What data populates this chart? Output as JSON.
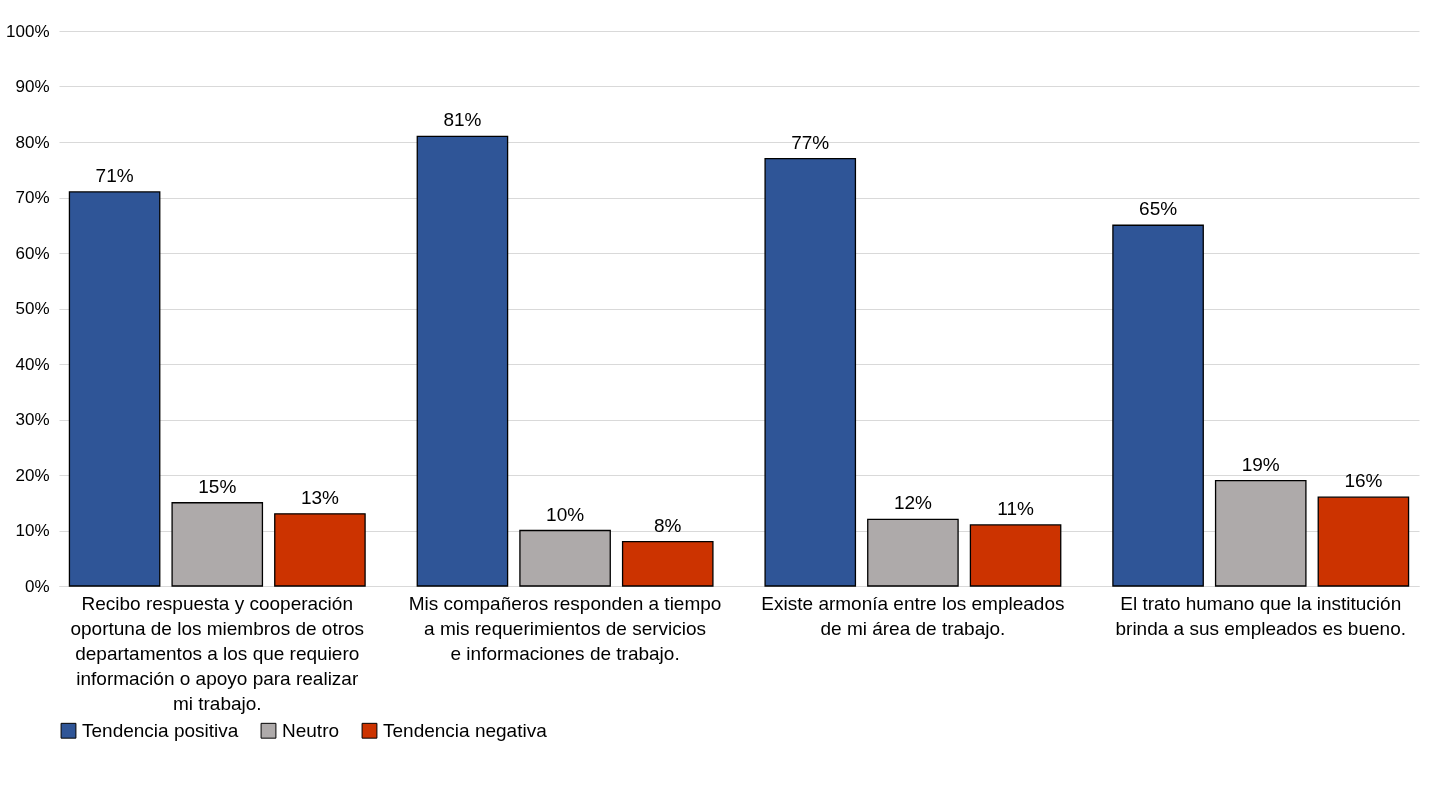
{
  "chart_data": {
    "type": "bar",
    "categories": [
      "Recibo respuesta y cooperación oportuna de los miembros de otros departamentos a los que requiero información o apoyo para realizar mi trabajo.",
      "Mis compañeros responden a tiempo a mis requerimientos de servicios e informaciones de trabajo.",
      "Existe armonía entre los empleados de mi área de trabajo.",
      "El trato humano que la institución brinda a sus empleados es bueno."
    ],
    "series": [
      {
        "name": "Tendencia positiva",
        "color": "#2f5597",
        "values": [
          71,
          81,
          77,
          65
        ],
        "value_labels": [
          "71%",
          "81%",
          "77%",
          "65%"
        ]
      },
      {
        "name": "Neutro",
        "color": "#aeaaaa",
        "values": [
          15,
          10,
          12,
          19
        ],
        "value_labels": [
          "15%",
          "10%",
          "12%",
          "19%"
        ]
      },
      {
        "name": "Tendencia negativa",
        "color": "#cc3300",
        "values": [
          13,
          8,
          11,
          16
        ],
        "value_labels": [
          "13%",
          "8%",
          "11%",
          "16%"
        ]
      }
    ],
    "ylim": [
      0,
      100
    ],
    "yticks": [
      {
        "value": 0,
        "label": "0%"
      },
      {
        "value": 10,
        "label": "10%"
      },
      {
        "value": 20,
        "label": "20%"
      },
      {
        "value": 30,
        "label": "30%"
      },
      {
        "value": 40,
        "label": "40%"
      },
      {
        "value": 50,
        "label": "50%"
      },
      {
        "value": 60,
        "label": "60%"
      },
      {
        "value": 70,
        "label": "70%"
      },
      {
        "value": 80,
        "label": "80%"
      },
      {
        "value": 90,
        "label": "90%"
      },
      {
        "value": 100,
        "label": "100%"
      }
    ],
    "grid": "y",
    "legend": "bottom"
  }
}
